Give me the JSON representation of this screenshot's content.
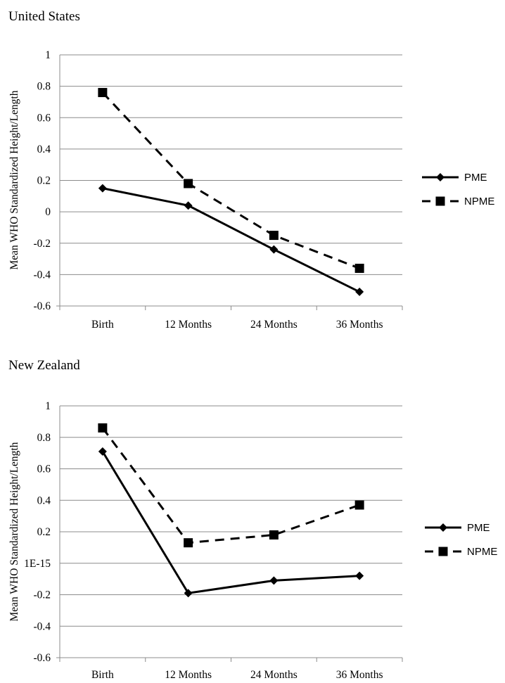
{
  "chart_data": [
    {
      "type": "line",
      "title": "United States",
      "ylabel": "Mean WHO Standardized Height/Length",
      "xlabel": "",
      "categories": [
        "Birth",
        "12 Months",
        "24 Months",
        "36 Months"
      ],
      "ylim": [
        -0.6,
        1
      ],
      "yticks": [
        "1",
        "0.8",
        "0.6",
        "0.4",
        "0.2",
        "0",
        "-0.2",
        "-0.4",
        "-0.6"
      ],
      "grid": true,
      "legend_position": "right",
      "series": [
        {
          "name": "PME",
          "values": [
            0.15,
            0.04,
            -0.24,
            -0.51
          ],
          "line": "solid",
          "marker": "diamond",
          "color": "#000000"
        },
        {
          "name": "NPME",
          "values": [
            0.76,
            0.18,
            -0.15,
            -0.36
          ],
          "line": "dashed",
          "marker": "square",
          "color": "#000000"
        }
      ]
    },
    {
      "type": "line",
      "title": "New Zealand",
      "ylabel": "Mean WHO Standardized Height/Length",
      "xlabel": "",
      "categories": [
        "Birth",
        "12 Months",
        "24 Months",
        "36 Months"
      ],
      "ylim": [
        -0.6,
        1
      ],
      "yticks": [
        "1",
        "0.8",
        "0.6",
        "0.4",
        "0.2",
        "1E-15",
        "-0.2",
        "-0.4",
        "-0.6"
      ],
      "grid": true,
      "legend_position": "right",
      "series": [
        {
          "name": "PME",
          "values": [
            0.71,
            -0.19,
            -0.11,
            -0.08
          ],
          "line": "solid",
          "marker": "diamond",
          "color": "#000000"
        },
        {
          "name": "NPME",
          "values": [
            0.86,
            0.13,
            0.18,
            0.37
          ],
          "line": "dashed",
          "marker": "square",
          "color": "#000000"
        }
      ]
    }
  ]
}
